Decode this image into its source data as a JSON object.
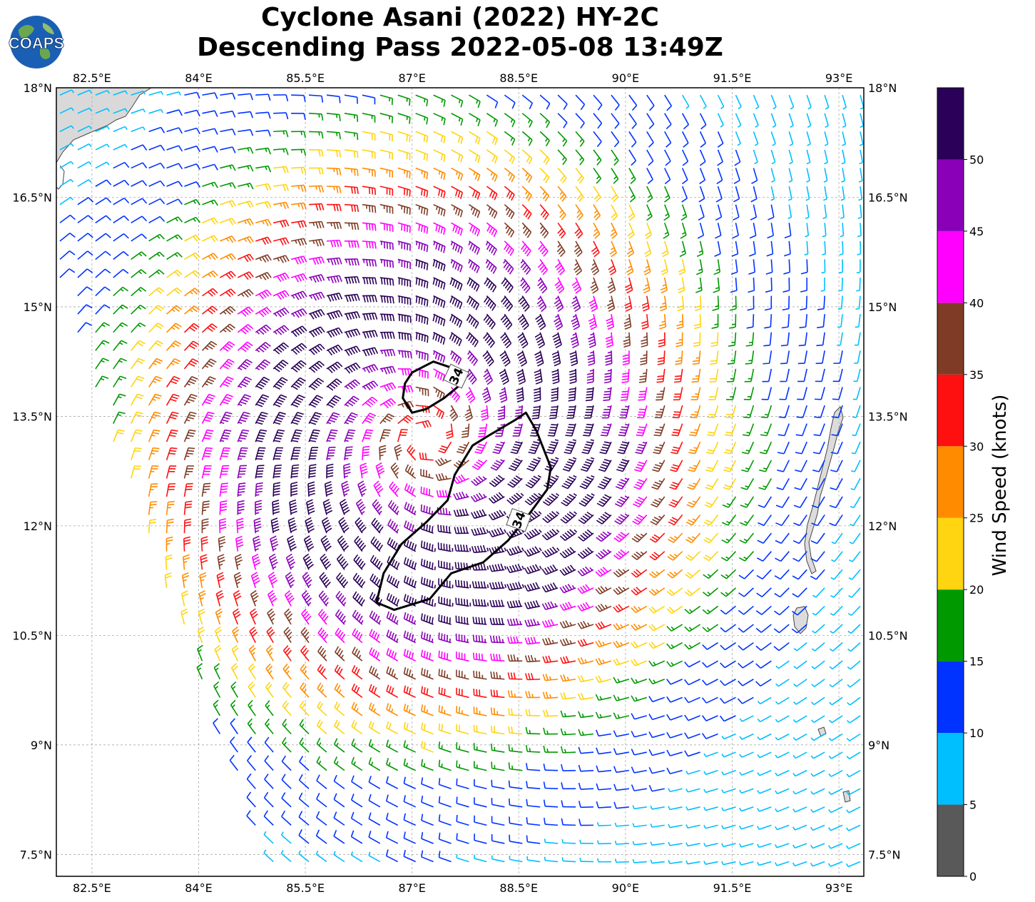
{
  "title": {
    "line1": "Cyclone Asani (2022) HY-2C",
    "line2": "Descending Pass 2022-05-08 13:49Z"
  },
  "logo": {
    "text": "COAPS",
    "icon": "globe-logo-icon"
  },
  "map": {
    "lon_range": [
      82.0,
      93.35
    ],
    "lat_range": [
      7.2,
      18.0
    ],
    "grid": true,
    "gridline_lons": [
      82.5,
      84.0,
      85.5,
      87.0,
      88.5,
      90.0,
      91.5,
      93.0
    ],
    "gridline_lats": [
      7.5,
      9.0,
      10.5,
      12.0,
      13.5,
      15.0,
      16.5,
      18.0
    ],
    "lon_labels": [
      "82.5°E",
      "84°E",
      "85.5°E",
      "87°E",
      "88.5°E",
      "90°E",
      "91.5°E",
      "93°E"
    ],
    "lat_labels": [
      "7.5°N",
      "9°N",
      "10.5°N",
      "12°N",
      "13.5°N",
      "15°N",
      "16.5°N",
      "18°N"
    ],
    "cyclone_center": {
      "lon": 87.2,
      "lat": 13.2
    },
    "swath_left_edge": [
      [
        82.0,
        15.3
      ],
      [
        85.0,
        7.2
      ]
    ],
    "contour_34kt": {
      "level_label": "34",
      "north_patch": [
        [
          87.0,
          14.1
        ],
        [
          87.3,
          14.25
        ],
        [
          87.6,
          14.15
        ],
        [
          87.7,
          13.95
        ],
        [
          87.45,
          13.75
        ],
        [
          87.2,
          13.6
        ],
        [
          87.0,
          13.55
        ],
        [
          86.87,
          13.75
        ],
        [
          86.9,
          13.95
        ]
      ],
      "south_patch": [
        [
          88.6,
          13.55
        ],
        [
          88.75,
          13.3
        ],
        [
          88.95,
          12.8
        ],
        [
          88.9,
          12.5
        ],
        [
          88.6,
          12.1
        ],
        [
          88.35,
          11.8
        ],
        [
          88.0,
          11.5
        ],
        [
          87.55,
          11.35
        ],
        [
          87.25,
          11.0
        ],
        [
          86.75,
          10.85
        ],
        [
          86.5,
          10.95
        ],
        [
          86.6,
          11.35
        ],
        [
          86.85,
          11.75
        ],
        [
          87.2,
          12.05
        ],
        [
          87.5,
          12.35
        ],
        [
          87.6,
          12.7
        ],
        [
          87.85,
          13.1
        ],
        [
          88.1,
          13.25
        ],
        [
          88.45,
          13.45
        ]
      ]
    }
  },
  "colorbar": {
    "label": "Wind Speed (knots)",
    "ticks": [
      "0",
      "5",
      "10",
      "15",
      "20",
      "25",
      "30",
      "35",
      "40",
      "45",
      "50"
    ],
    "bins": [
      {
        "min": 0,
        "max": 5,
        "color": "#595959"
      },
      {
        "min": 5,
        "max": 10,
        "color": "#00bfff"
      },
      {
        "min": 10,
        "max": 15,
        "color": "#0033ff"
      },
      {
        "min": 15,
        "max": 20,
        "color": "#009900"
      },
      {
        "min": 20,
        "max": 25,
        "color": "#ffd410"
      },
      {
        "min": 25,
        "max": 30,
        "color": "#ff8c00"
      },
      {
        "min": 30,
        "max": 35,
        "color": "#ff1010"
      },
      {
        "min": 35,
        "max": 40,
        "color": "#7f3b25"
      },
      {
        "min": 40,
        "max": 45,
        "color": "#ff00ff"
      },
      {
        "min": 45,
        "max": 50,
        "color": "#8a00b8"
      },
      {
        "min": 50,
        "max": 55,
        "color": "#2b0058"
      }
    ]
  }
}
